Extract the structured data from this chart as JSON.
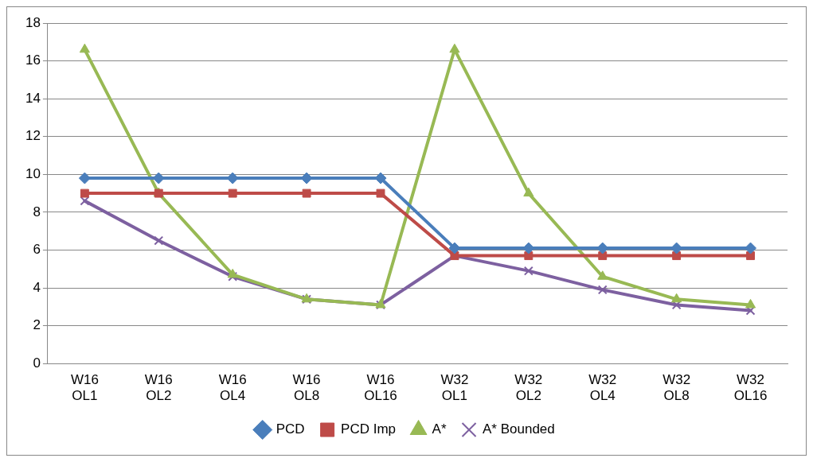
{
  "chart_data": {
    "type": "line",
    "categories": [
      "W16 OL1",
      "W16 OL2",
      "W16 OL4",
      "W16 OL8",
      "W16 OL16",
      "W32 OL1",
      "W32 OL2",
      "W32 OL4",
      "W32 OL8",
      "W32 OL16"
    ],
    "series": [
      {
        "name": "PCD",
        "color": "#4a7ebb",
        "marker": "diamond",
        "values": [
          9.8,
          9.8,
          9.8,
          9.8,
          9.8,
          6.1,
          6.1,
          6.1,
          6.1,
          6.1
        ]
      },
      {
        "name": "PCD Imp",
        "color": "#be4b48",
        "marker": "square",
        "values": [
          9.0,
          9.0,
          9.0,
          9.0,
          9.0,
          5.7,
          5.7,
          5.7,
          5.7,
          5.7
        ]
      },
      {
        "name": "A*",
        "color": "#98b954",
        "marker": "triangle",
        "values": [
          16.6,
          9.0,
          4.7,
          3.4,
          3.1,
          16.6,
          9.0,
          4.6,
          3.4,
          3.1
        ]
      },
      {
        "name": "A* Bounded",
        "color": "#7d60a0",
        "marker": "cross",
        "values": [
          8.6,
          6.5,
          4.6,
          3.4,
          3.1,
          5.7,
          4.9,
          3.9,
          3.1,
          2.8
        ]
      }
    ],
    "ylim": [
      0,
      18
    ],
    "yticks": [
      0,
      2,
      4,
      6,
      8,
      10,
      12,
      14,
      16,
      18
    ],
    "grid": "y",
    "legend": "bottom",
    "line_style": "solid"
  }
}
